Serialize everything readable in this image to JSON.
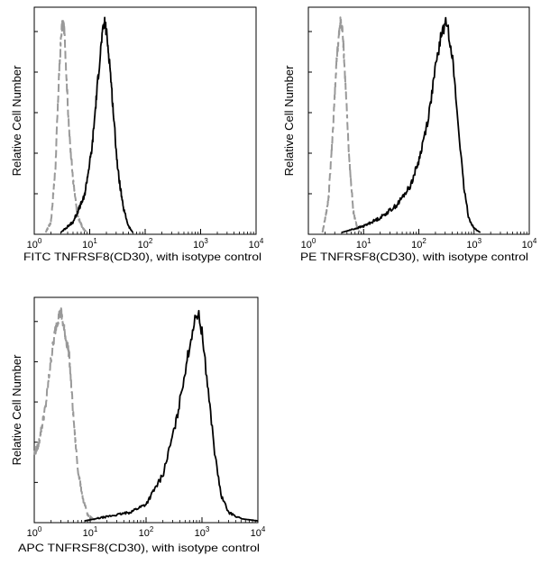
{
  "chart_data": [
    {
      "type": "line",
      "panel": "FITC",
      "xlabel": "FITC TNFRSF8(CD30),  with isotype control",
      "ylabel": "Relative Cell Number",
      "xscale": "log",
      "xlim": [
        1,
        10000
      ],
      "x_ticks": [
        {
          "base": "10",
          "exp": "0"
        },
        {
          "base": "10",
          "exp": "1"
        },
        {
          "base": "10",
          "exp": "2"
        },
        {
          "base": "10",
          "exp": "3"
        },
        {
          "base": "10",
          "exp": "4"
        }
      ],
      "ylim": [
        0,
        1
      ],
      "series": [
        {
          "role": "isotype control",
          "color": "#999999",
          "dashed": true,
          "x": [
            1.6,
            2.0,
            2.4,
            2.8,
            3.1,
            3.3,
            3.5,
            3.8,
            4.2,
            5.0,
            6.0,
            7.5,
            9.0
          ],
          "y": [
            0.0,
            0.05,
            0.3,
            0.75,
            0.96,
            1.0,
            0.95,
            0.75,
            0.5,
            0.25,
            0.08,
            0.02,
            0.0
          ]
        },
        {
          "role": "TNFRSF8(CD30)",
          "color": "#000000",
          "dashed": false,
          "x": [
            3.0,
            5.0,
            8.0,
            11.0,
            14.0,
            16.5,
            18.5,
            20.0,
            23.0,
            27.0,
            32.0,
            40.0,
            50.0,
            60.0
          ],
          "y": [
            0.0,
            0.05,
            0.17,
            0.4,
            0.72,
            0.92,
            1.0,
            0.95,
            0.8,
            0.55,
            0.3,
            0.12,
            0.03,
            0.0
          ]
        }
      ]
    },
    {
      "type": "line",
      "panel": "PE",
      "xlabel": "PE TNFRSF8(CD30),  with isotype control",
      "ylabel": "Relative Cell Number",
      "xscale": "log",
      "xlim": [
        1,
        10000
      ],
      "x_ticks": [
        {
          "base": "10",
          "exp": "0"
        },
        {
          "base": "10",
          "exp": "1"
        },
        {
          "base": "10",
          "exp": "2"
        },
        {
          "base": "10",
          "exp": "3"
        },
        {
          "base": "10",
          "exp": "4"
        }
      ],
      "ylim": [
        0,
        1
      ],
      "series": [
        {
          "role": "isotype control",
          "color": "#999999",
          "dashed": true,
          "x": [
            1.8,
            2.3,
            2.8,
            3.3,
            3.8,
            4.2,
            4.8,
            5.5,
            6.5,
            7.5,
            8.5
          ],
          "y": [
            0.0,
            0.15,
            0.5,
            0.85,
            1.0,
            0.95,
            0.65,
            0.35,
            0.1,
            0.03,
            0.0
          ]
        },
        {
          "role": "TNFRSF8(CD30)",
          "color": "#000000",
          "dashed": false,
          "x": [
            4.0,
            10.0,
            20.0,
            40.0,
            70.0,
            100.0,
            150.0,
            200.0,
            260.0,
            320.0,
            400.0,
            500.0,
            650.0,
            800.0,
            1000.0,
            1300.0
          ],
          "y": [
            0.0,
            0.03,
            0.07,
            0.13,
            0.22,
            0.34,
            0.55,
            0.78,
            0.95,
            1.0,
            0.85,
            0.55,
            0.22,
            0.07,
            0.02,
            0.0
          ]
        }
      ]
    },
    {
      "type": "line",
      "panel": "APC",
      "xlabel": "APC  TNFRSF8(CD30), with isotype control",
      "ylabel": "Relative Cell Number",
      "xscale": "log",
      "xlim": [
        1,
        10000
      ],
      "x_ticks": [
        {
          "base": "10",
          "exp": "0"
        },
        {
          "base": "10",
          "exp": "1"
        },
        {
          "base": "10",
          "exp": "2"
        },
        {
          "base": "10",
          "exp": "3"
        },
        {
          "base": "10",
          "exp": "4"
        }
      ],
      "ylim": [
        0,
        1
      ],
      "series": [
        {
          "role": "isotype control",
          "color": "#999999",
          "dashed": true,
          "x": [
            1.0,
            1.2,
            1.6,
            2.0,
            2.5,
            3.0,
            3.5,
            4.2,
            5.0,
            6.0,
            7.5,
            9.0,
            11.0,
            13.0
          ],
          "y": [
            0.32,
            0.37,
            0.55,
            0.78,
            0.95,
            1.0,
            0.9,
            0.8,
            0.5,
            0.25,
            0.1,
            0.03,
            0.01,
            0.0
          ]
        },
        {
          "role": "TNFRSF8(CD30)",
          "color": "#000000",
          "dashed": false,
          "x": [
            8.0,
            20.0,
            50.0,
            100.0,
            200.0,
            350.0,
            500.0,
            700.0,
            850.0,
            1000.0,
            1300.0,
            1700.0,
            2200.0,
            3000.0,
            5000.0,
            10000.0
          ],
          "y": [
            0.0,
            0.02,
            0.04,
            0.08,
            0.22,
            0.48,
            0.72,
            0.93,
            1.0,
            0.9,
            0.62,
            0.32,
            0.12,
            0.04,
            0.01,
            0.0
          ]
        }
      ]
    }
  ]
}
